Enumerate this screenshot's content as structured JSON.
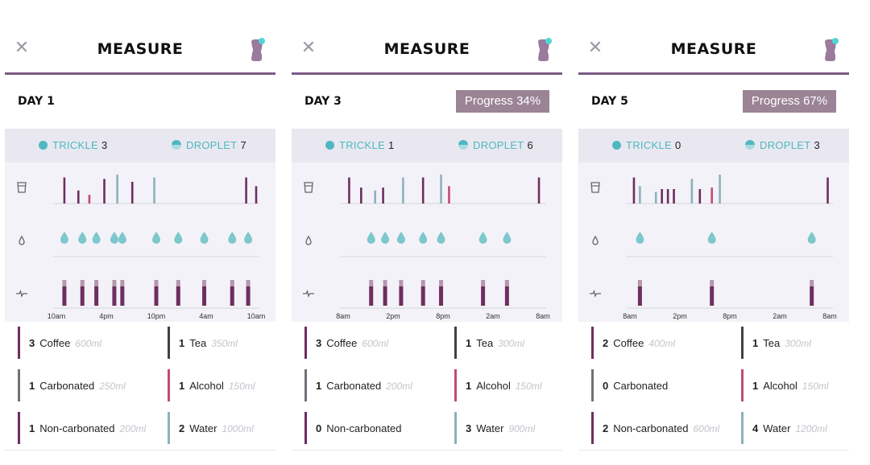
{
  "screens": [
    {
      "title": "MEASURE",
      "day": "DAY 1",
      "progress": null,
      "trickle_label": "TRICKLE",
      "trickle_count": "3",
      "droplet_label": "DROPLET",
      "droplet_count": "7",
      "x_ticks": [
        "10am",
        "4pm",
        "10pm",
        "4am",
        "10am"
      ],
      "drink_bars": [
        {
          "x": 0.04,
          "h": 0.9,
          "color": "#6e2e5f"
        },
        {
          "x": 0.11,
          "h": 0.45,
          "color": "#6e2e5f"
        },
        {
          "x": 0.165,
          "h": 0.3,
          "color": "#c24a77"
        },
        {
          "x": 0.24,
          "h": 0.85,
          "color": "#6e2e5f"
        },
        {
          "x": 0.305,
          "h": 1.0,
          "color": "#8fb1bc"
        },
        {
          "x": 0.38,
          "h": 0.75,
          "color": "#6e2e5f"
        },
        {
          "x": 0.49,
          "h": 0.9,
          "color": "#8fb1bc"
        },
        {
          "x": 0.95,
          "h": 0.9,
          "color": "#6e2e5f"
        },
        {
          "x": 1.0,
          "h": 0.6,
          "color": "#6e2e5f"
        }
      ],
      "drops": [
        0.04,
        0.13,
        0.2,
        0.29,
        0.33,
        0.5,
        0.61,
        0.74,
        0.88,
        0.96
      ],
      "effect_bars": [
        0.04,
        0.13,
        0.2,
        0.29,
        0.33,
        0.5,
        0.61,
        0.74,
        0.88,
        0.96
      ],
      "drinks": [
        {
          "count": "3",
          "name": "Coffee",
          "vol": "600ml",
          "color": "#6e2e5f"
        },
        {
          "count": "1",
          "name": "Tea",
          "vol": "350ml",
          "color": "#3f3f48"
        },
        {
          "count": "1",
          "name": "Carbonated",
          "vol": "250ml",
          "color": "#707078"
        },
        {
          "count": "1",
          "name": "Alcohol",
          "vol": "150ml",
          "color": "#c24a77"
        },
        {
          "count": "1",
          "name": "Non-carbonated",
          "vol": "200ml",
          "color": "#6e2e5f"
        },
        {
          "count": "2",
          "name": "Water",
          "vol": "1000ml",
          "color": "#8fb1bc"
        }
      ]
    },
    {
      "title": "MEASURE",
      "day": "DAY 3",
      "progress": "Progress 34%",
      "trickle_label": "TRICKLE",
      "trickle_count": "1",
      "droplet_label": "DROPLET",
      "droplet_count": "6",
      "x_ticks": [
        "8am",
        "2pm",
        "8pm",
        "2am",
        "8am"
      ],
      "drink_bars": [
        {
          "x": 0.03,
          "h": 0.9,
          "color": "#6e2e5f"
        },
        {
          "x": 0.09,
          "h": 0.55,
          "color": "#6e2e5f"
        },
        {
          "x": 0.16,
          "h": 0.45,
          "color": "#8fb1bc"
        },
        {
          "x": 0.2,
          "h": 0.55,
          "color": "#6e2e5f"
        },
        {
          "x": 0.3,
          "h": 0.9,
          "color": "#8fb1bc"
        },
        {
          "x": 0.4,
          "h": 0.9,
          "color": "#6e2e5f"
        },
        {
          "x": 0.49,
          "h": 1.0,
          "color": "#8fb1bc"
        },
        {
          "x": 0.53,
          "h": 0.6,
          "color": "#c24a77"
        },
        {
          "x": 0.98,
          "h": 0.9,
          "color": "#6e2e5f"
        }
      ],
      "drops": [
        0.14,
        0.21,
        0.29,
        0.4,
        0.49,
        0.7,
        0.82
      ],
      "effect_bars": [
        0.14,
        0.21,
        0.29,
        0.4,
        0.49,
        0.7,
        0.82
      ],
      "drinks": [
        {
          "count": "3",
          "name": "Coffee",
          "vol": "600ml",
          "color": "#6e2e5f"
        },
        {
          "count": "1",
          "name": "Tea",
          "vol": "300ml",
          "color": "#3f3f48"
        },
        {
          "count": "1",
          "name": "Carbonated",
          "vol": "200ml",
          "color": "#707078"
        },
        {
          "count": "1",
          "name": "Alcohol",
          "vol": "150ml",
          "color": "#c24a77"
        },
        {
          "count": "0",
          "name": "Non-carbonated",
          "vol": "",
          "color": "#6e2e5f"
        },
        {
          "count": "3",
          "name": "Water",
          "vol": "900ml",
          "color": "#8fb1bc"
        }
      ]
    },
    {
      "title": "MEASURE",
      "day": "DAY 5",
      "progress": "Progress 67%",
      "trickle_label": "TRICKLE",
      "trickle_count": "0",
      "droplet_label": "DROPLET",
      "droplet_count": "3",
      "x_ticks": [
        "8am",
        "2pm",
        "8pm",
        "2am",
        "8am"
      ],
      "drink_bars": [
        {
          "x": 0.02,
          "h": 0.9,
          "color": "#6e2e5f"
        },
        {
          "x": 0.05,
          "h": 0.6,
          "color": "#8fb1bc"
        },
        {
          "x": 0.13,
          "h": 0.4,
          "color": "#8fb1bc"
        },
        {
          "x": 0.16,
          "h": 0.5,
          "color": "#6e2e5f"
        },
        {
          "x": 0.19,
          "h": 0.5,
          "color": "#6e2e5f"
        },
        {
          "x": 0.22,
          "h": 0.5,
          "color": "#6e2e5f"
        },
        {
          "x": 0.31,
          "h": 0.85,
          "color": "#8fb1bc"
        },
        {
          "x": 0.35,
          "h": 0.5,
          "color": "#6e2e5f"
        },
        {
          "x": 0.41,
          "h": 0.55,
          "color": "#c24a77"
        },
        {
          "x": 0.45,
          "h": 1.0,
          "color": "#8fb1bc"
        },
        {
          "x": 0.99,
          "h": 0.9,
          "color": "#6e2e5f"
        }
      ],
      "drops": [
        0.05,
        0.41,
        0.91
      ],
      "effect_bars": [
        0.05,
        0.41,
        0.91
      ],
      "drinks": [
        {
          "count": "2",
          "name": "Coffee",
          "vol": "400ml",
          "color": "#6e2e5f"
        },
        {
          "count": "1",
          "name": "Tea",
          "vol": "300ml",
          "color": "#3f3f48"
        },
        {
          "count": "0",
          "name": "Carbonated",
          "vol": "",
          "color": "#707078"
        },
        {
          "count": "1",
          "name": "Alcohol",
          "vol": "150ml",
          "color": "#c24a77"
        },
        {
          "count": "2",
          "name": "Non-carbonated",
          "vol": "600ml",
          "color": "#6e2e5f"
        },
        {
          "count": "4",
          "name": "Water",
          "vol": "1200ml",
          "color": "#8fb1bc"
        }
      ]
    }
  ],
  "colors": {
    "accent": "#7d5a86",
    "teal": "#4fb8c0",
    "progress_bg": "#9b8496"
  },
  "icons": {
    "close": "close-icon",
    "bottle": "bottle-icon",
    "cup": "cup-icon",
    "drop": "drop-icon",
    "pulse": "pulse-icon"
  }
}
